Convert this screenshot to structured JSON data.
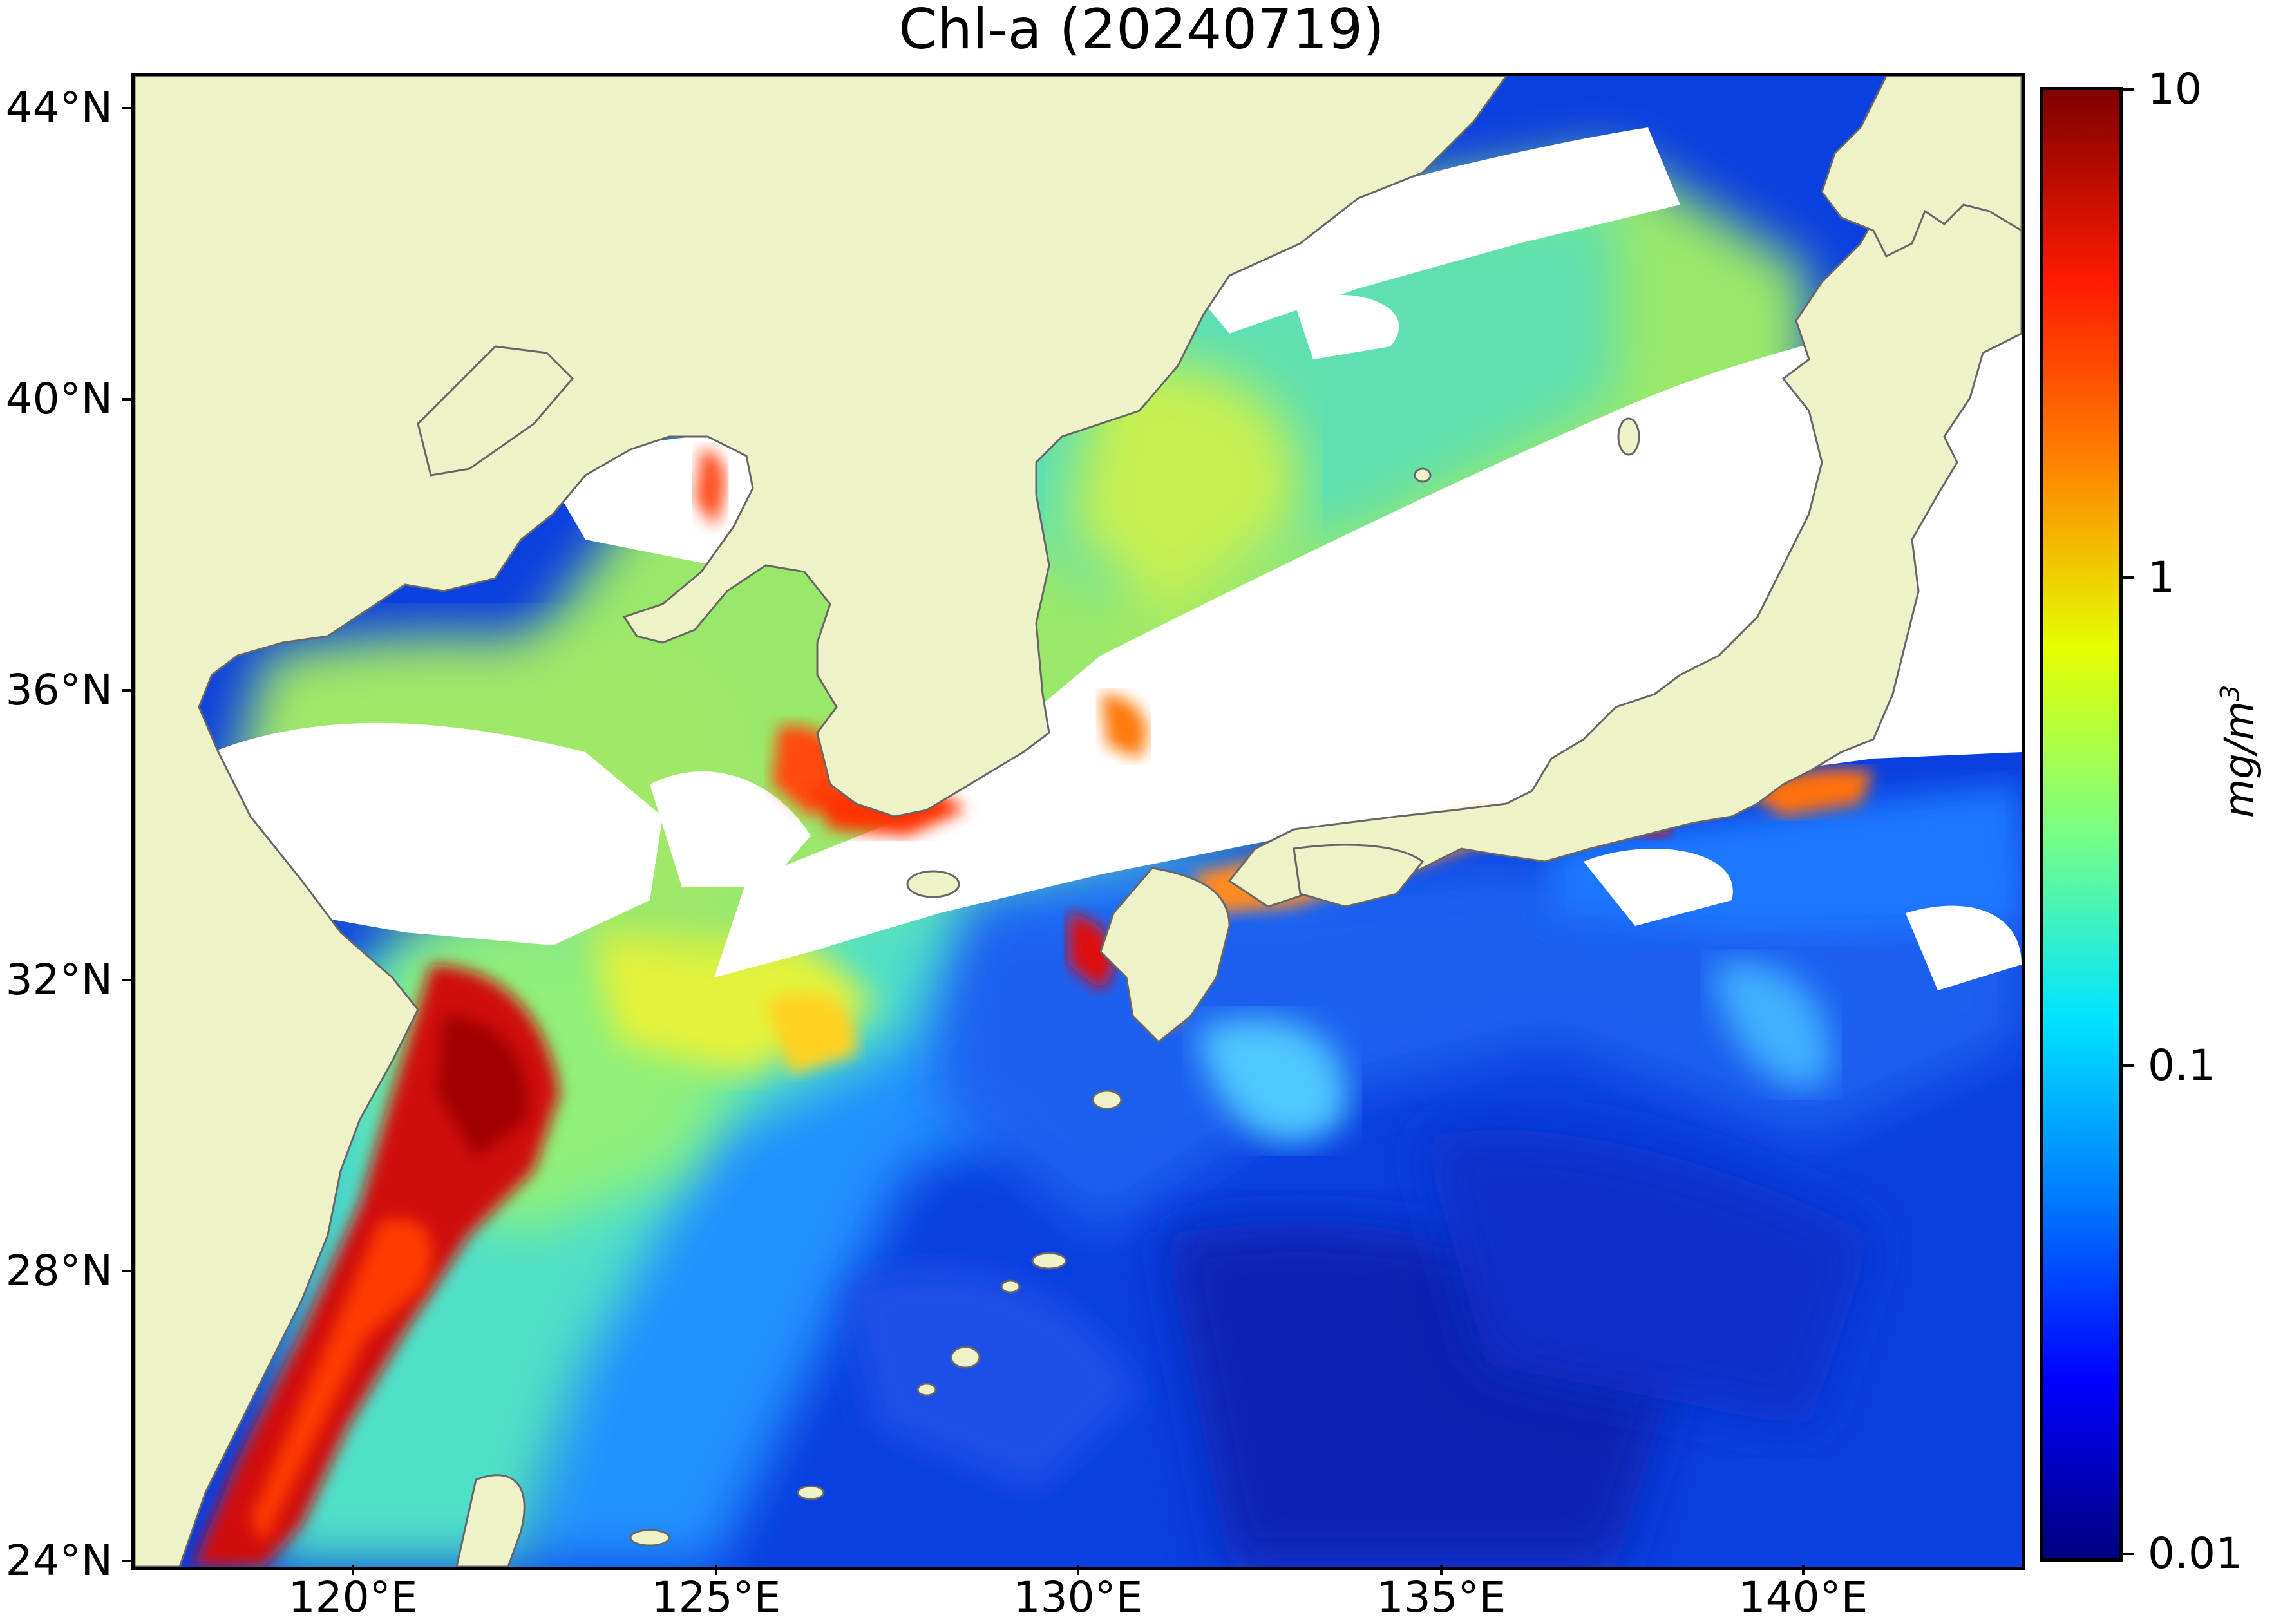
{
  "title": "Chl-a (20240719)",
  "latitude_labels": [
    "44°N",
    "40°N",
    "36°N",
    "32°N",
    "28°N",
    "24°N"
  ],
  "longitude_labels": [
    "120°E",
    "125°E",
    "130°E",
    "135°E",
    "140°E"
  ],
  "colorbar": {
    "tick_labels": [
      "10",
      "1",
      "0.1",
      "0.01"
    ],
    "unit_base": "mg/m",
    "unit_exp": "3",
    "scale": "log",
    "range": [
      0.01,
      10
    ],
    "colormap": "jet"
  },
  "colors": {
    "land": "#eff2c8",
    "no_data": "#ffffff",
    "coastline": "#666666"
  }
}
